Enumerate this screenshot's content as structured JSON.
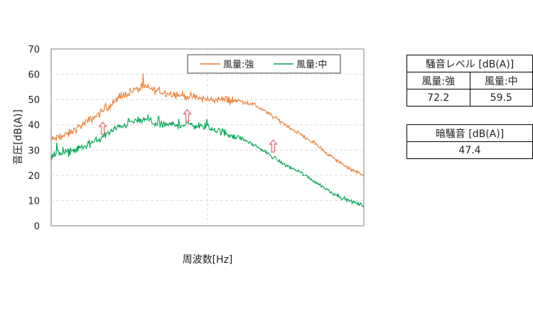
{
  "chart_data": {
    "type": "line",
    "title": "",
    "xlabel": "周波数[Hz]",
    "ylabel": "音圧[dB(A)]",
    "ylim": [
      0,
      70
    ],
    "yticks": [
      "0",
      "10",
      "20",
      "30",
      "40",
      "50",
      "60",
      "70"
    ],
    "xlim": [
      0,
      100
    ],
    "xticks": [],
    "grid": true,
    "legend_position": "top-right",
    "x": [
      0,
      5,
      10,
      15,
      20,
      25,
      30,
      35,
      40,
      45,
      50,
      55,
      60,
      65,
      70,
      75,
      80,
      85,
      90,
      95,
      100
    ],
    "series": [
      {
        "name": "風量:強",
        "color": "#ED7D31",
        "values": [
          34,
          36,
          40,
          44,
          49,
          53,
          55,
          53,
          52,
          51,
          50,
          50,
          49.5,
          48,
          44,
          40,
          36,
          32,
          27,
          23,
          20
        ]
      },
      {
        "name": "風量:中",
        "color": "#00A651",
        "values": [
          28,
          29,
          31,
          34,
          38,
          41,
          42,
          40,
          40,
          40,
          39,
          37,
          35,
          32,
          28,
          24,
          21,
          17,
          13,
          10,
          8
        ]
      }
    ],
    "annotations": [
      {
        "type": "arrow-up",
        "x": 16.5,
        "y": 41,
        "color": "#E8747C"
      },
      {
        "type": "arrow-up",
        "x": 43.5,
        "y": 46,
        "color": "#E8747C"
      },
      {
        "type": "arrow-up",
        "x": 71,
        "y": 34,
        "color": "#E8747C"
      }
    ]
  },
  "noise_table": {
    "header": "騒音レベル [dB(A)]",
    "col1": "風量:強",
    "col2": "風量:中",
    "val1": "72.2",
    "val2": "59.5"
  },
  "background_table": {
    "header": "暗騒音 [dB(A)]",
    "value": "47.4"
  }
}
